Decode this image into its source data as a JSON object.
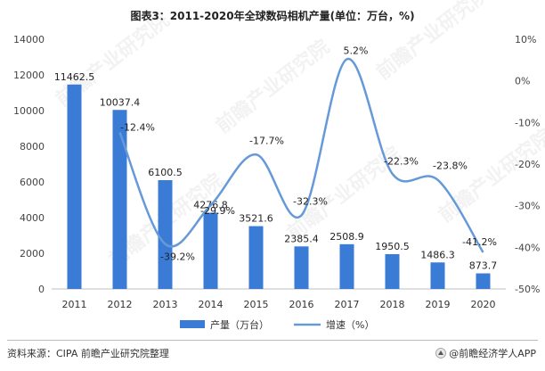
{
  "chart_data": {
    "type": "bar",
    "title": "图表3：2011-2020年全球数码相机产量(单位：万台，%)",
    "categories": [
      "2011",
      "2012",
      "2013",
      "2014",
      "2015",
      "2016",
      "2017",
      "2018",
      "2019",
      "2020"
    ],
    "series": [
      {
        "name": "产量（万台）",
        "type": "bar",
        "axis": "left",
        "color": "#3a7bd5",
        "values": [
          11462.5,
          10037.4,
          6100.5,
          4276.8,
          3521.6,
          2385.4,
          2508.9,
          1950.5,
          1486.3,
          873.7
        ],
        "labels": [
          "11462.5",
          "10037.4",
          "6100.5",
          "4276.8",
          "3521.6",
          "2385.4",
          "2508.9",
          "1950.5",
          "1486.3",
          "873.7"
        ]
      },
      {
        "name": "增速（%）",
        "type": "line",
        "smooth": true,
        "axis": "right",
        "color": "#6699d8",
        "values": [
          null,
          -12.4,
          -39.2,
          -29.9,
          -17.7,
          -32.3,
          5.2,
          -22.3,
          -23.8,
          -41.2
        ],
        "labels": [
          "",
          "-12.4%",
          "-39.2%",
          "-29.9%",
          "-17.7%",
          "-32.3%",
          "5.2%",
          "-22.3%",
          "-23.8%",
          "-41.2%"
        ]
      }
    ],
    "y_left": {
      "min": 0,
      "max": 14000,
      "ticks": [
        0,
        2000,
        4000,
        6000,
        8000,
        10000,
        12000,
        14000
      ],
      "tick_labels": [
        "0",
        "2000",
        "4000",
        "6000",
        "8000",
        "10000",
        "12000",
        "14000"
      ]
    },
    "y_right": {
      "min": -50,
      "max": 10,
      "ticks": [
        10,
        0,
        -10,
        -20,
        -30,
        -40,
        -50
      ],
      "tick_labels": [
        "10%",
        "0%",
        "-10%",
        "-20%",
        "-30%",
        "-40%",
        "-50%"
      ]
    },
    "grid": false,
    "legend": "bottom-center"
  },
  "watermark": "前瞻产业研究院",
  "footer": {
    "source": "资料来源：CIPA 前瞻产业研究院整理",
    "brand": "@前瞻经济学人APP"
  }
}
